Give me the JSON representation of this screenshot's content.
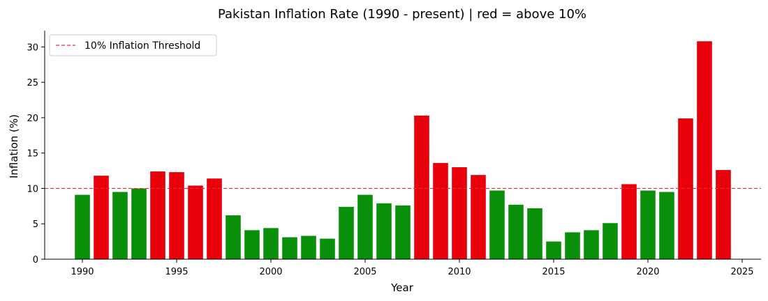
{
  "chart_data": {
    "type": "bar",
    "title": "Pakistan Inflation Rate (1990 - present) | red = above 10%",
    "xlabel": "Year",
    "ylabel": "Inflation (%)",
    "xlim": [
      1988,
      2026
    ],
    "ylim": [
      0,
      32.3
    ],
    "x_ticks": [
      1990,
      1995,
      2000,
      2005,
      2010,
      2015,
      2020,
      2025
    ],
    "y_ticks": [
      0,
      5,
      10,
      15,
      20,
      25,
      30
    ],
    "threshold": {
      "value": 10,
      "label": "10% Inflation Threshold",
      "color": "#e03040"
    },
    "legend_position": "top-left",
    "grid": false,
    "colors": {
      "above": "#e8000b",
      "below": "#0a8f0a"
    },
    "series": [
      {
        "x": [
          1990,
          1991,
          1992,
          1993,
          1994,
          1995,
          1996,
          1997,
          1998,
          1999,
          2000,
          2001,
          2002,
          2003,
          2004,
          2005,
          2006,
          2007,
          2008,
          2009,
          2010,
          2011,
          2012,
          2013,
          2014,
          2015,
          2016,
          2017,
          2018,
          2019,
          2020,
          2021,
          2022,
          2023,
          2024
        ],
        "values": [
          9.1,
          11.8,
          9.5,
          10.0,
          12.4,
          12.3,
          10.4,
          11.4,
          6.2,
          4.1,
          4.4,
          3.1,
          3.3,
          2.9,
          7.4,
          9.1,
          7.9,
          7.6,
          20.3,
          13.6,
          13.0,
          11.9,
          9.7,
          7.7,
          7.2,
          2.5,
          3.8,
          4.1,
          5.1,
          10.6,
          9.7,
          9.5,
          19.9,
          30.8,
          12.6
        ]
      }
    ]
  }
}
